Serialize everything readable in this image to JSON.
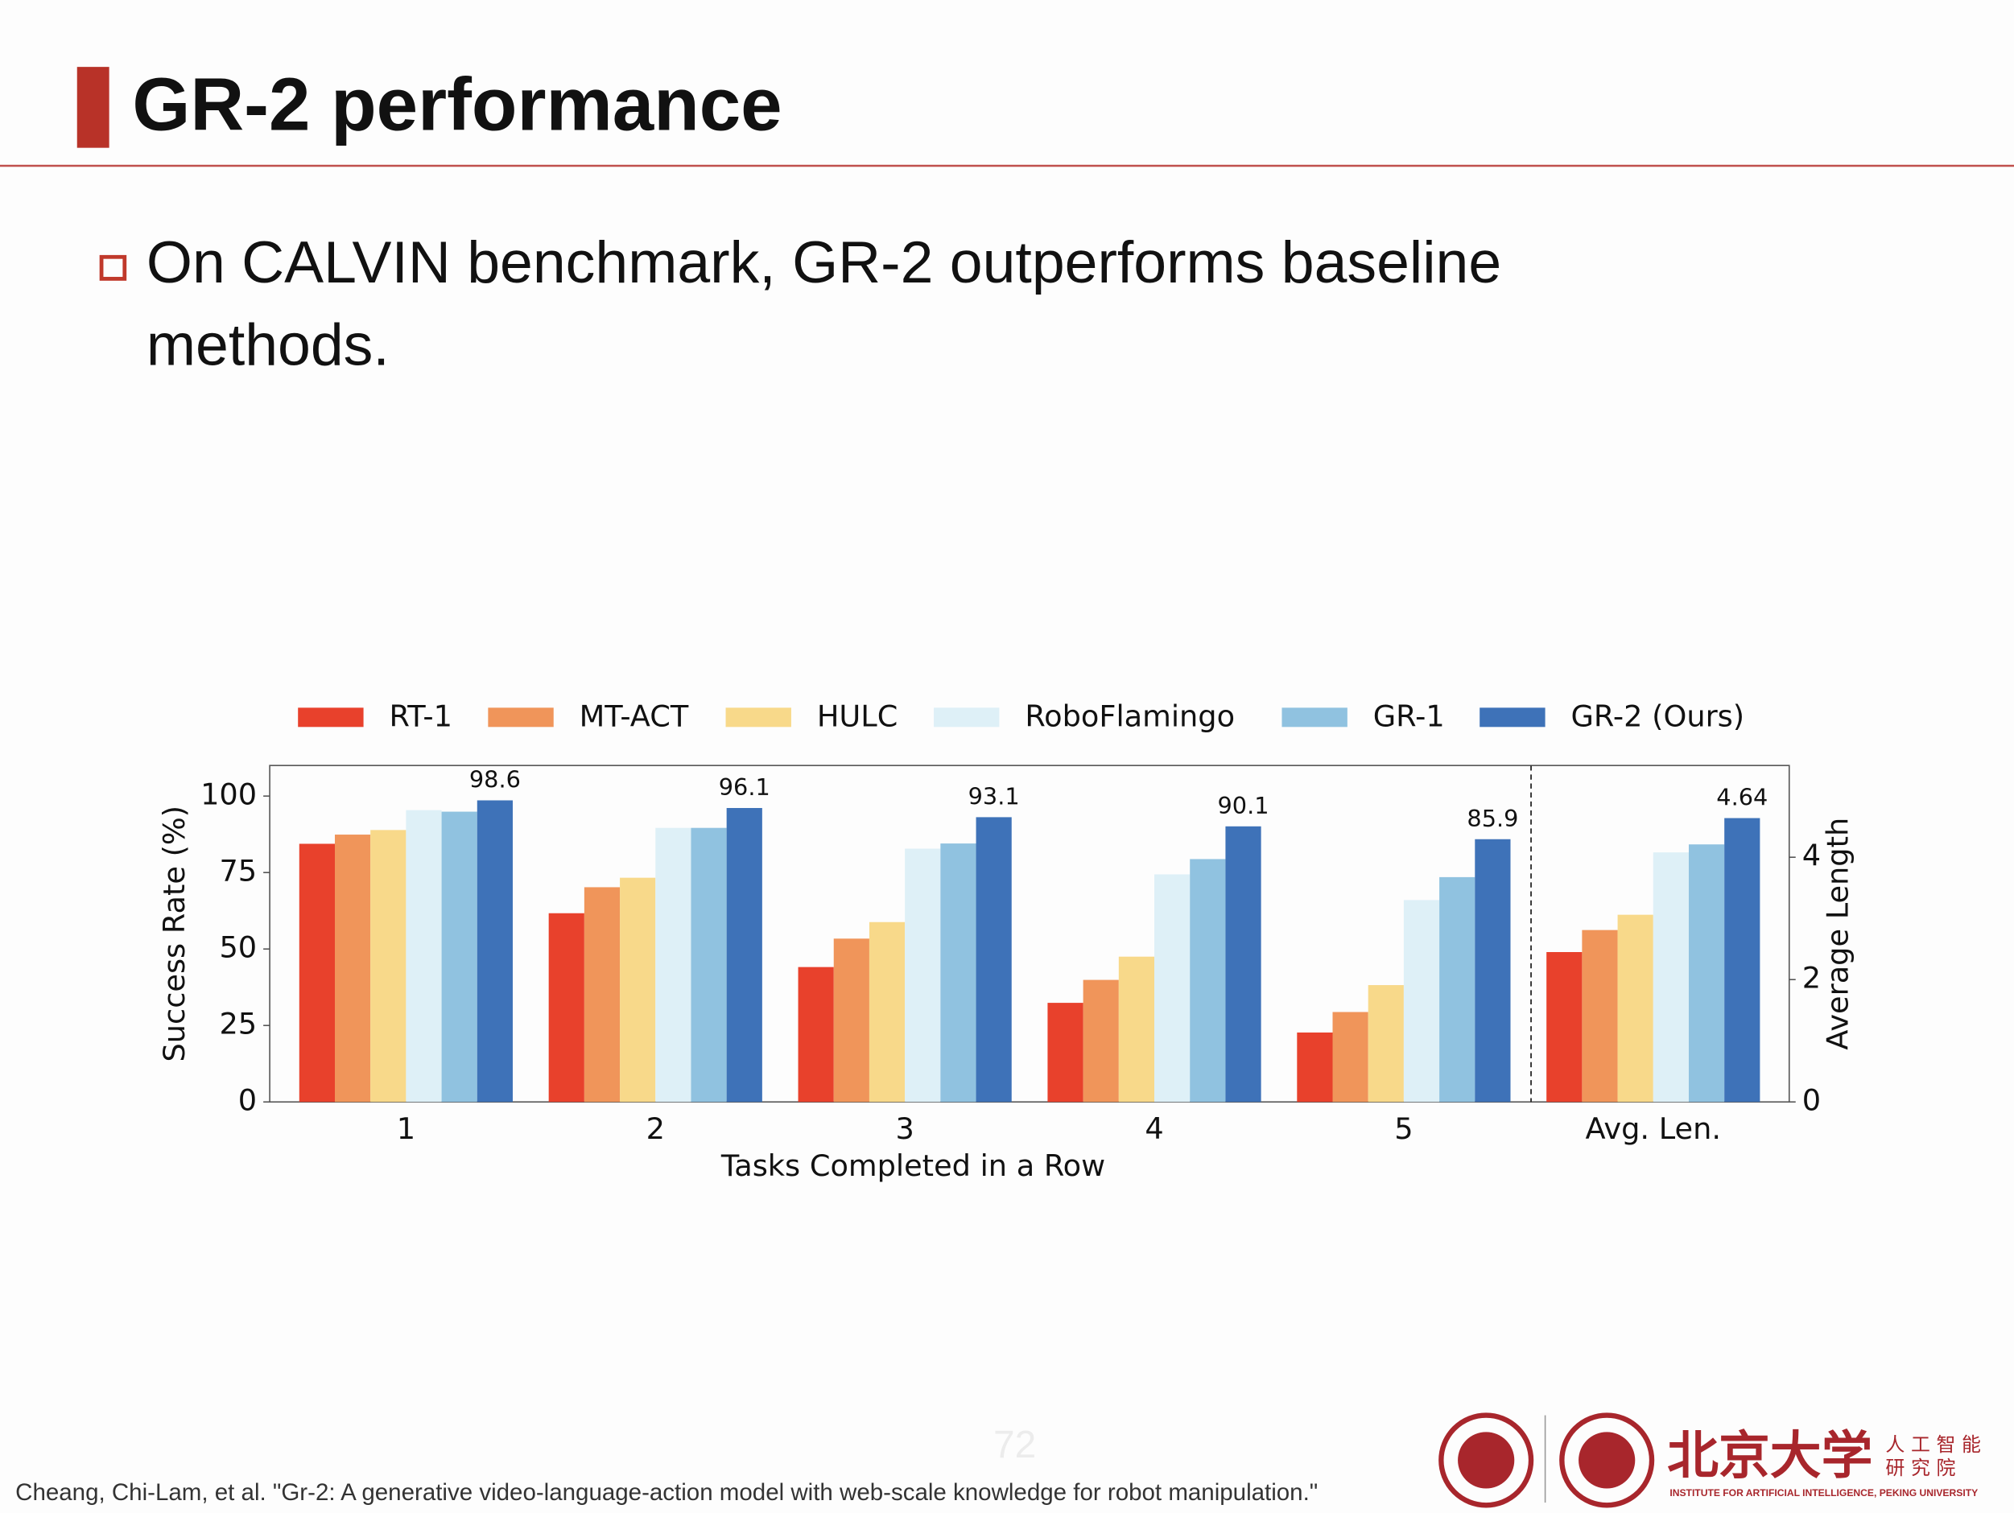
{
  "header": {
    "title": "GR-2 performance"
  },
  "bullet": {
    "lines": [
      "On CALVIN benchmark, GR-2 outperforms baseline",
      "methods."
    ]
  },
  "chart_data": {
    "type": "bar",
    "x_label": "Tasks Completed in a Row",
    "y_label": "Success Rate (%)",
    "y2_label": "Average Length",
    "categories": [
      "1",
      "2",
      "3",
      "4",
      "5"
    ],
    "ylim": [
      0,
      110
    ],
    "yticks": [
      0,
      25,
      50,
      75,
      100
    ],
    "y2lim": [
      0,
      5.5
    ],
    "y2ticks": [
      0,
      2,
      4
    ],
    "y2_group": {
      "category": "Avg. Len.",
      "axis": "y2",
      "values": [
        2.45,
        2.81,
        3.06,
        4.08,
        4.21,
        4.64
      ],
      "data_labels": [
        false,
        false,
        false,
        false,
        false,
        true
      ]
    },
    "grid": false,
    "legend": "top",
    "series": [
      {
        "name": "RT-1",
        "color": "#e8412c",
        "values": [
          84.4,
          61.7,
          44.1,
          32.4,
          22.7
        ]
      },
      {
        "name": "MT-ACT",
        "color": "#f0955a",
        "values": [
          87.4,
          70.2,
          53.4,
          39.9,
          29.4
        ]
      },
      {
        "name": "HULC",
        "color": "#f8d98a",
        "values": [
          88.9,
          73.3,
          58.8,
          47.5,
          38.2
        ]
      },
      {
        "name": "RoboFlamingo",
        "color": "#def0f7",
        "values": [
          95.4,
          89.6,
          82.8,
          74.4,
          66.0
        ]
      },
      {
        "name": "GR-1",
        "color": "#90c2e0",
        "values": [
          94.9,
          89.6,
          84.5,
          79.4,
          73.5
        ]
      },
      {
        "name": "GR-2 (Ours)",
        "color": "#3e72b8",
        "values": [
          98.6,
          96.1,
          93.1,
          90.1,
          85.9
        ],
        "data_labels": true
      }
    ]
  },
  "footer": {
    "citation": "Cheang, Chi-Lam, et al. \"Gr-2: A generative video-language-action model with web-scale knowledge for robot manipulation.\"",
    "page_number": "72",
    "logo_name": "北京大学",
    "logo_institute_1": "人 工 智 能",
    "logo_institute_2": "研 究 院",
    "logo_english": "INSTITUTE FOR ARTIFICIAL INTELLIGENCE, PEKING UNIVERSITY"
  }
}
